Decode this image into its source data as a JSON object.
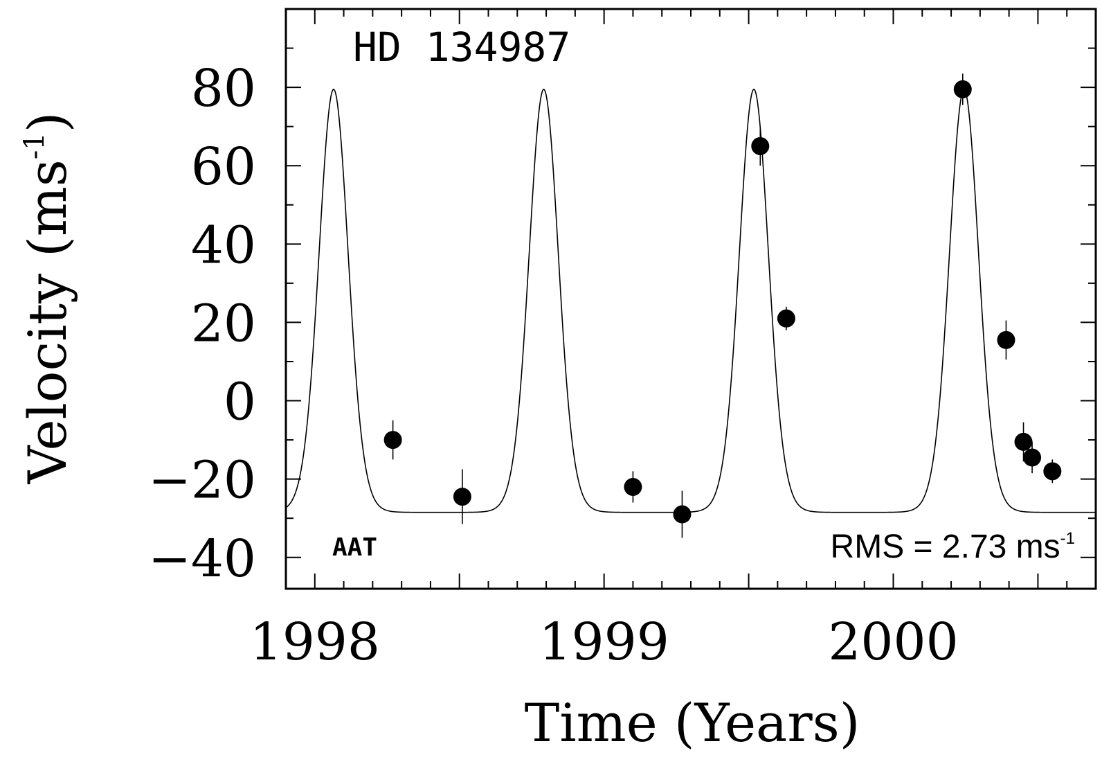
{
  "chart_data": {
    "type": "scatter",
    "title": "HD 134987",
    "xlabel": "Time (Years)",
    "ylabel": "Velocity (ms",
    "ylabel_sup": "-1",
    "xlim": [
      1997.9,
      2000.7
    ],
    "ylim": [
      -48,
      100
    ],
    "x_ticks": [
      1998,
      1999,
      2000
    ],
    "x_tick_labels": [
      "1998",
      "1999",
      "2000"
    ],
    "y_ticks": [
      -40,
      -20,
      0,
      20,
      40,
      60,
      80
    ],
    "y_tick_labels": [
      "−40",
      "−20",
      "0",
      "20",
      "40",
      "60",
      "80"
    ],
    "annotations": {
      "observatory": "AAT",
      "rms": "RMS = 2.73 ms",
      "rms_sup": "-1"
    },
    "series": [
      {
        "kind": "points",
        "points": [
          {
            "x": 1998.27,
            "y": -10,
            "err": 5
          },
          {
            "x": 1998.51,
            "y": -24.5,
            "err": 7
          },
          {
            "x": 1999.1,
            "y": -22,
            "err": 4
          },
          {
            "x": 1999.27,
            "y": -29,
            "err": 6
          },
          {
            "x": 1999.54,
            "y": 65,
            "err": 5
          },
          {
            "x": 1999.63,
            "y": 21,
            "err": 3
          },
          {
            "x": 2000.24,
            "y": 79.5,
            "err": 4
          },
          {
            "x": 2000.39,
            "y": 15.5,
            "err": 5
          },
          {
            "x": 2000.45,
            "y": -10.5,
            "err": 5
          },
          {
            "x": 2000.48,
            "y": -14.5,
            "err": 4
          },
          {
            "x": 2000.55,
            "y": -18,
            "err": 3
          }
        ]
      },
      {
        "kind": "orbit_fit",
        "period_years": 0.7265,
        "peak_epoch": 1998.065,
        "velocity_max": 79.5,
        "velocity_min": -28.5
      }
    ]
  }
}
